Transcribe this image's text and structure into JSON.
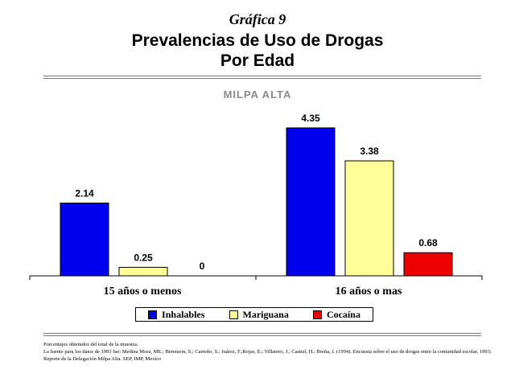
{
  "header": {
    "label": "Gráfica 9",
    "title_line1": "Prevalencias de Uso de Drogas",
    "title_line2": "Por Edad"
  },
  "chart_data": {
    "type": "bar",
    "title": "MILPA ALTA",
    "categories": [
      "15 años o menos",
      "16 años o mas"
    ],
    "series": [
      {
        "name": "Inhalables",
        "values": [
          2.14,
          4.35
        ],
        "color": "#0000ee"
      },
      {
        "name": "Mariguana",
        "values": [
          0.25,
          3.38
        ],
        "color": "#ffff99"
      },
      {
        "name": "Cocaína",
        "values": [
          0,
          0.68
        ],
        "color": "#ee0000"
      }
    ],
    "value_labels": [
      [
        "2.14",
        "4.35"
      ],
      [
        "0.25",
        "3.38"
      ],
      [
        "0",
        "0.68"
      ]
    ],
    "ylim": [
      0,
      5
    ],
    "grid": false,
    "legend_position": "bottom"
  },
  "footnotes": {
    "line1": "Porcentajes obtenidos del total de la muestra.",
    "line2": "La fuente para los datos de 1993 fue: Medina Mora, ME.; Berenzon, S.; Carreño, S.; Juárez, F.;Rojas, E.; Villatoro, J.; Castiel, H.; Breña, J. (1994). Encuesta sobre el uso de drogas entre la comunidad escolar, 1993; Reporte de la Delegación Milpa Alta. SEP, IMP, Mexico"
  }
}
